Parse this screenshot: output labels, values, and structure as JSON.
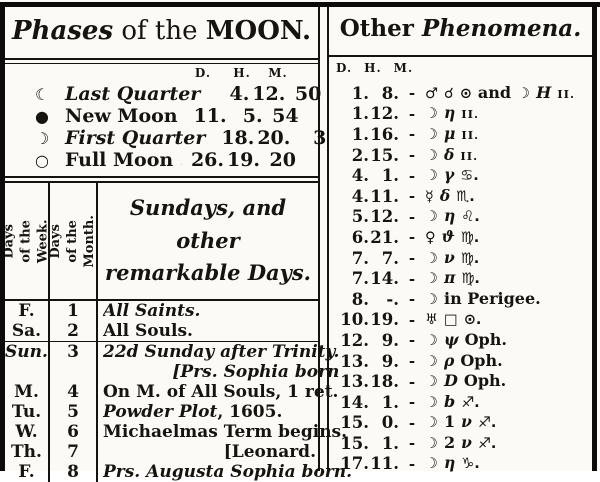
{
  "colors": {
    "paper": "#fbfaf6",
    "ink": "#17130e",
    "border": "#0c0b09"
  },
  "left": {
    "title": {
      "part1": "Phases",
      "part2": " of the ",
      "part3": "MOON."
    },
    "dhm": {
      "d": "D.",
      "h": "H.",
      "m": "M."
    },
    "phases": [
      {
        "symbol": "☾",
        "icon": "last-quarter-moon-icon",
        "label": "Last Quarter",
        "label_style": "it",
        "dots": ". . . .",
        "d": "4.",
        "h": "12.",
        "m": "50"
      },
      {
        "symbol": "●",
        "icon": "new-moon-icon",
        "label": "New Moon",
        "label_style": "rm",
        "dots": ". . . . .",
        "d": "11.",
        "h": "5.",
        "m": "54"
      },
      {
        "symbol": "☽",
        "icon": "first-quarter-moon-icon",
        "label": "First Quarter",
        "label_style": "it",
        "dots": ". . . .",
        "d": "18.",
        "h": "20.",
        "m": "3"
      },
      {
        "symbol": "○",
        "icon": "full-moon-icon",
        "label": "Full Moon",
        "label_style": "rm",
        "dots": ". . . . .",
        "d": "26.",
        "h": "19.",
        "m": "20"
      }
    ],
    "calendar": {
      "col1_header": "Days of the Week.",
      "col2_header": "Days of the Month.",
      "col3_header_line1": "Sundays, and other",
      "col3_header_line2": "remarkable Days.",
      "rows": [
        {
          "day": "F.",
          "date": "1",
          "lines": [
            {
              "align": "left",
              "parts": [
                {
                  "t": "All Saints.",
                  "s": "it"
                }
              ]
            }
          ]
        },
        {
          "day": "Sa.",
          "date": "2",
          "rule_after": true,
          "lines": [
            {
              "align": "left",
              "parts": [
                {
                  "t": "All Souls.",
                  "s": "rm"
                }
              ]
            }
          ]
        },
        {
          "day": "Sun.",
          "day_style": "it",
          "date": "3",
          "lines": [
            {
              "align": "left",
              "parts": [
                {
                  "t": "22d Sunday after Trinity.",
                  "s": "it"
                }
              ]
            },
            {
              "align": "right",
              "parts": [
                {
                  "t": "[Prs. Sophia born",
                  "s": "it"
                }
              ]
            }
          ]
        },
        {
          "day": "M.",
          "date": "4",
          "lines": [
            {
              "align": "left",
              "parts": [
                {
                  "t": "On M. of All Souls, 1 ret.",
                  "s": "rm"
                }
              ]
            }
          ]
        },
        {
          "day": "Tu.",
          "date": "5",
          "lines": [
            {
              "align": "left",
              "parts": [
                {
                  "t": "Powder Plot",
                  "s": "it"
                },
                {
                  "t": ", 1605.",
                  "s": "rm"
                }
              ]
            }
          ]
        },
        {
          "day": "W.",
          "date": "6",
          "lines": [
            {
              "align": "left",
              "parts": [
                {
                  "t": "Michaelmas Term begins.",
                  "s": "rm"
                }
              ]
            }
          ]
        },
        {
          "day": "Th.",
          "date": "7",
          "lines": [
            {
              "align": "right",
              "parts": [
                {
                  "t": "[Leonard.",
                  "s": "rm"
                }
              ]
            }
          ]
        },
        {
          "day": "F.",
          "date": "8",
          "lines": [
            {
              "align": "left",
              "parts": [
                {
                  "t": "Prs. Augusta Sophia born.",
                  "s": "it"
                }
              ]
            }
          ]
        }
      ]
    }
  },
  "right": {
    "title": {
      "part1": "Other ",
      "part2": "Phenomena."
    },
    "dhm": {
      "d": "D.",
      "h": "H.",
      "m": "M."
    },
    "rows": [
      {
        "d": "1.",
        "h": "8.",
        "dash": "-",
        "desc": [
          {
            "t": "♂",
            "s": "sym",
            "n": "mars-icon"
          },
          {
            "t": "☌",
            "s": "sym",
            "n": "conjunction-icon"
          },
          {
            "t": "⊙",
            "s": "sym",
            "n": "sun-icon"
          },
          {
            "t": "and",
            "s": "rm",
            "n": "text"
          },
          {
            "t": "☽",
            "s": "sym",
            "n": "moon-icon"
          },
          {
            "t": "H",
            "s": "itb",
            "n": "star-letter"
          },
          {
            "t": "II.",
            "s": "sc",
            "n": "gemini-sign"
          }
        ]
      },
      {
        "d": "1.",
        "h": "12.",
        "dash": "-",
        "desc": [
          {
            "t": "☽",
            "s": "sym",
            "n": "moon-icon"
          },
          {
            "t": "η",
            "s": "grk",
            "n": "star-letter"
          },
          {
            "t": "II.",
            "s": "sc",
            "n": "gemini-sign"
          }
        ]
      },
      {
        "d": "1.",
        "h": "16.",
        "dash": "-",
        "desc": [
          {
            "t": "☽",
            "s": "sym",
            "n": "moon-icon"
          },
          {
            "t": "μ",
            "s": "grk",
            "n": "star-letter"
          },
          {
            "t": "II.",
            "s": "sc",
            "n": "gemini-sign"
          }
        ]
      },
      {
        "d": "2.",
        "h": "15.",
        "dash": "-",
        "desc": [
          {
            "t": "☽",
            "s": "sym",
            "n": "moon-icon"
          },
          {
            "t": "δ",
            "s": "grk",
            "n": "star-letter"
          },
          {
            "t": "II.",
            "s": "sc",
            "n": "gemini-sign"
          }
        ]
      },
      {
        "d": "4.",
        "h": "1.",
        "dash": "-",
        "desc": [
          {
            "t": "☽",
            "s": "sym",
            "n": "moon-icon"
          },
          {
            "t": "γ",
            "s": "grk",
            "n": "star-letter"
          },
          {
            "t": "♋.",
            "s": "sym",
            "n": "cancer-icon"
          }
        ]
      },
      {
        "d": "4.",
        "h": "11.",
        "dash": "-",
        "desc": [
          {
            "t": "☿",
            "s": "sym",
            "n": "mercury-icon"
          },
          {
            "t": "δ",
            "s": "grk",
            "n": "star-letter"
          },
          {
            "t": "♏.",
            "s": "sym",
            "n": "scorpio-icon"
          }
        ]
      },
      {
        "d": "5.",
        "h": "12.",
        "dash": "-",
        "desc": [
          {
            "t": "☽",
            "s": "sym",
            "n": "moon-icon"
          },
          {
            "t": "η",
            "s": "grk",
            "n": "star-letter"
          },
          {
            "t": "♌.",
            "s": "sym",
            "n": "leo-icon"
          }
        ]
      },
      {
        "d": "6.",
        "h": "21.",
        "dash": "-",
        "desc": [
          {
            "t": "♀",
            "s": "sym",
            "n": "venus-icon"
          },
          {
            "t": "ϑ",
            "s": "grk",
            "n": "star-letter"
          },
          {
            "t": "♍.",
            "s": "sym",
            "n": "virgo-icon"
          }
        ]
      },
      {
        "d": "7.",
        "h": "7.",
        "dash": "-",
        "desc": [
          {
            "t": "☽",
            "s": "sym",
            "n": "moon-icon"
          },
          {
            "t": "ν",
            "s": "grk",
            "n": "star-letter"
          },
          {
            "t": "♍.",
            "s": "sym",
            "n": "virgo-icon"
          }
        ]
      },
      {
        "d": "7.",
        "h": "14.",
        "dash": "-",
        "desc": [
          {
            "t": "☽",
            "s": "sym",
            "n": "moon-icon"
          },
          {
            "t": "π",
            "s": "grk",
            "n": "star-letter"
          },
          {
            "t": "♍.",
            "s": "sym",
            "n": "virgo-icon"
          }
        ]
      },
      {
        "d": "8.",
        "h": "-.",
        "dash": "-",
        "desc": [
          {
            "t": "☽",
            "s": "sym",
            "n": "moon-icon"
          },
          {
            "t": "in Perigee.",
            "s": "rm",
            "n": "text"
          }
        ]
      },
      {
        "d": "10.",
        "h": "19.",
        "dash": "-",
        "desc": [
          {
            "t": "♅",
            "s": "sym",
            "n": "uranus-icon"
          },
          {
            "t": "□",
            "s": "sym",
            "n": "square-aspect-icon"
          },
          {
            "t": "⊙.",
            "s": "sym",
            "n": "sun-icon"
          }
        ]
      },
      {
        "d": "12.",
        "h": "9.",
        "dash": "-",
        "desc": [
          {
            "t": "☽",
            "s": "sym",
            "n": "moon-icon"
          },
          {
            "t": "ψ",
            "s": "grk",
            "n": "star-letter"
          },
          {
            "t": "Oph.",
            "s": "rm",
            "n": "text"
          }
        ]
      },
      {
        "d": "13.",
        "h": "9.",
        "dash": "-",
        "desc": [
          {
            "t": "☽",
            "s": "sym",
            "n": "moon-icon"
          },
          {
            "t": "ρ",
            "s": "grk",
            "n": "star-letter"
          },
          {
            "t": "Oph.",
            "s": "rm",
            "n": "text"
          }
        ]
      },
      {
        "d": "13.",
        "h": "18.",
        "dash": "-",
        "desc": [
          {
            "t": "☽",
            "s": "sym",
            "n": "moon-icon"
          },
          {
            "t": "D",
            "s": "itb",
            "n": "star-letter"
          },
          {
            "t": "Oph.",
            "s": "rm",
            "n": "text"
          }
        ]
      },
      {
        "d": "14.",
        "h": "1.",
        "dash": "-",
        "desc": [
          {
            "t": "☽",
            "s": "sym",
            "n": "moon-icon"
          },
          {
            "t": "b",
            "s": "itb",
            "n": "star-letter"
          },
          {
            "t": "♐.",
            "s": "sym",
            "n": "sagittarius-icon"
          }
        ]
      },
      {
        "d": "15.",
        "h": "0.",
        "dash": "-",
        "desc": [
          {
            "t": "☽",
            "s": "sym",
            "n": "moon-icon"
          },
          {
            "t": "1",
            "s": "rmb",
            "n": "star-number"
          },
          {
            "t": "ν",
            "s": "grk",
            "n": "star-letter"
          },
          {
            "t": "♐.",
            "s": "sym",
            "n": "sagittarius-icon"
          }
        ]
      },
      {
        "d": "15.",
        "h": "1.",
        "dash": "-",
        "desc": [
          {
            "t": "☽",
            "s": "sym",
            "n": "moon-icon"
          },
          {
            "t": "2",
            "s": "rmb",
            "n": "star-number"
          },
          {
            "t": "ν",
            "s": "grk",
            "n": "star-letter"
          },
          {
            "t": "♐.",
            "s": "sym",
            "n": "sagittarius-icon"
          }
        ]
      },
      {
        "d": "17.",
        "h": "11.",
        "dash": "-",
        "desc": [
          {
            "t": "☽",
            "s": "sym",
            "n": "moon-icon"
          },
          {
            "t": "η",
            "s": "grk",
            "n": "star-letter"
          },
          {
            "t": "♑.",
            "s": "sym",
            "n": "capricorn-icon"
          }
        ]
      }
    ]
  }
}
